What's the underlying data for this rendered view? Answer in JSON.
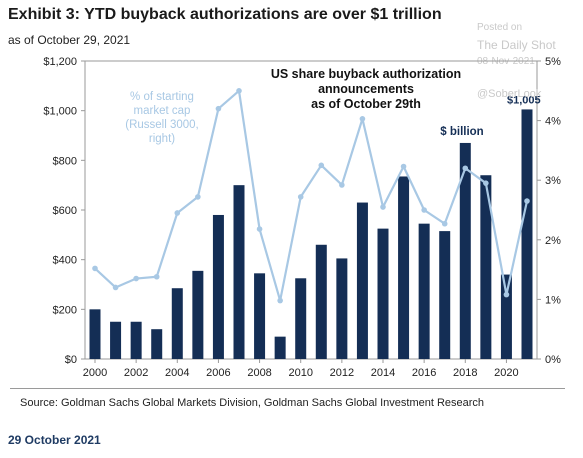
{
  "title": "Exhibit 3: YTD buyback authorizations are over $1 trillion",
  "subtitle": "as of October 29, 2021",
  "source": "Source: Goldman Sachs Global Markets Division, Goldman Sachs Global Investment Research",
  "footer_date": "29 October 2021",
  "watermark": {
    "line1": "Posted on",
    "line2": "The Daily Shot",
    "line3": "08-Nov-2021",
    "line4": "@SoberLook"
  },
  "colors": {
    "bar": "#142e55",
    "line": "#a8c8e4",
    "line_label": "#a8c8e4",
    "text": "#1a1a1a",
    "grid": "#9a9a9a"
  },
  "chart_data": {
    "type": "bar",
    "title": "US share buyback authorization announcements as of October 29th",
    "x": [
      2000,
      2001,
      2002,
      2003,
      2004,
      2005,
      2006,
      2007,
      2008,
      2009,
      2010,
      2011,
      2012,
      2013,
      2014,
      2015,
      2016,
      2017,
      2018,
      2019,
      2020,
      2021
    ],
    "x_tick_labels": [
      "2000",
      "2002",
      "2004",
      "2006",
      "2008",
      "2010",
      "2012",
      "2014",
      "2016",
      "2018",
      "2020"
    ],
    "series": [
      {
        "name": "$ billion",
        "axis": "left",
        "type": "bar",
        "values": [
          200,
          150,
          150,
          120,
          285,
          355,
          580,
          700,
          345,
          90,
          325,
          460,
          405,
          630,
          525,
          735,
          545,
          515,
          870,
          740,
          340,
          1005
        ],
        "data_labels": {
          "2021": "$1,005"
        }
      },
      {
        "name": "% of starting market cap (Russell 3000, right)",
        "axis": "right",
        "type": "line",
        "values": [
          1.52,
          1.2,
          1.35,
          1.38,
          2.45,
          2.72,
          4.2,
          4.5,
          2.18,
          0.98,
          2.72,
          3.25,
          2.92,
          4.03,
          2.55,
          3.23,
          2.5,
          2.27,
          3.2,
          2.95,
          1.08,
          2.65
        ]
      }
    ],
    "y_left": {
      "min": 0,
      "max": 1200,
      "ticks": [
        "$0",
        "$200",
        "$400",
        "$600",
        "$800",
        "$1,000",
        "$1,200"
      ]
    },
    "y_right": {
      "min": 0,
      "max": 5,
      "ticks": [
        "0%",
        "1%",
        "2%",
        "3%",
        "4%",
        "5%"
      ]
    },
    "annotations": {
      "line_label_lines": [
        "% of starting",
        "market cap",
        "(Russell 3000,",
        "right)"
      ],
      "bar_label": "$ billion",
      "title_lines": [
        "US share buyback authorization",
        "announcements",
        "as of October 29th"
      ]
    },
    "grid": false,
    "legend": "inline labels"
  }
}
